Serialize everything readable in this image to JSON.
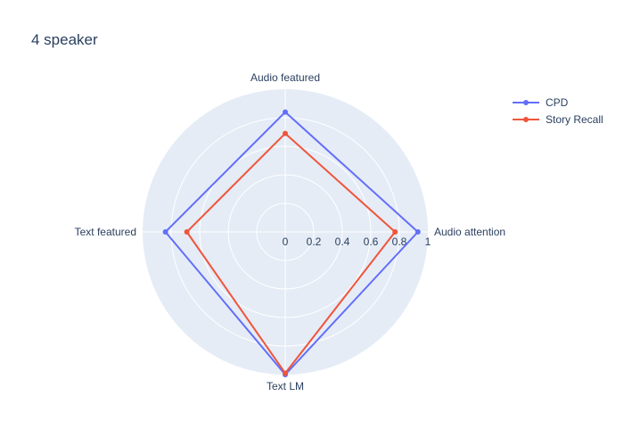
{
  "chart_data": {
    "type": "radar",
    "title": "4 speaker",
    "axes": [
      "Audio attention",
      "Audio featured",
      "Text featured",
      "Text LM"
    ],
    "radial_range": [
      0,
      1
    ],
    "radial_ticks": [
      "0",
      "0.2",
      "0.4",
      "0.6",
      "0.8",
      "1"
    ],
    "grid": true,
    "legend_position": "top-right",
    "series": [
      {
        "name": "CPD",
        "color": "#636efa",
        "values": [
          0.93,
          0.84,
          0.84,
          1.0
        ]
      },
      {
        "name": "Story Recall",
        "color": "#ef553b",
        "values": [
          0.77,
          0.69,
          0.69,
          0.99
        ]
      }
    ]
  }
}
